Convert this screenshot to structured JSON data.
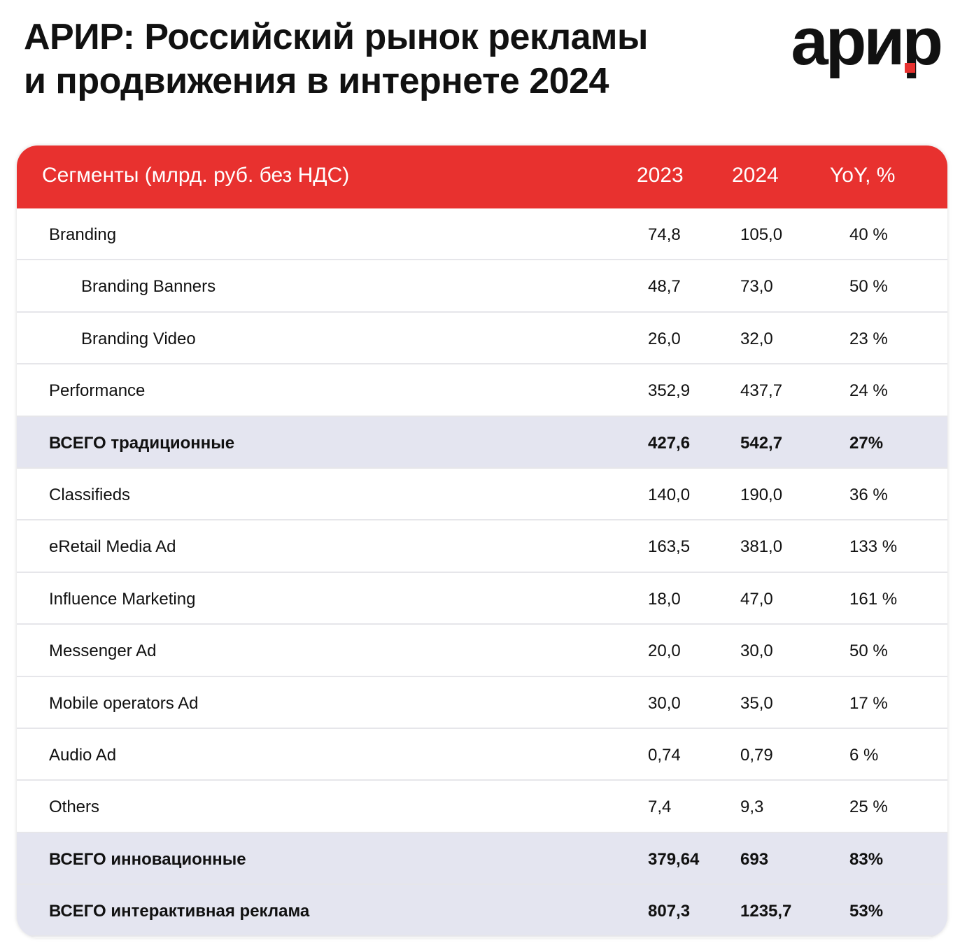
{
  "header": {
    "title_lines": [
      "АРИР: Российский рынок рекламы",
      "и продвижения в интернете 2024"
    ],
    "logo": "арир"
  },
  "table": {
    "columns": [
      "Сегменты (млрд. руб. без НДС)",
      "2023",
      "2024",
      "YoY, %"
    ],
    "rows": [
      [
        "Branding",
        "74,8",
        "105,0",
        "40 %"
      ],
      [
        "Branding Banners",
        "48,7",
        "73,0",
        "50 %"
      ],
      [
        "Branding Video",
        "26,0",
        "32,0",
        "23 %"
      ],
      [
        "Performance",
        "352,9",
        "437,7",
        "24 %"
      ],
      [
        "ВСЕГО традиционные",
        "427,6",
        "542,7",
        "27%"
      ],
      [
        "Classifieds",
        "140,0",
        "190,0",
        "36 %"
      ],
      [
        "eRetail Media Ad",
        "163,5",
        "381,0",
        "133 %"
      ],
      [
        "Influence Marketing",
        "18,0",
        "47,0",
        "161 %"
      ],
      [
        "Messenger Ad",
        "20,0",
        "30,0",
        "50 %"
      ],
      [
        "Mobile operators Ad",
        "30,0",
        "35,0",
        "17 %"
      ],
      [
        "Audio Ad",
        "0,74",
        "0,79",
        "6 %"
      ],
      [
        "Others",
        "7,4",
        "9,3",
        "25 %"
      ],
      [
        "ВСЕГО инновационные",
        "379,64",
        "693",
        "83%"
      ],
      [
        "ВСЕГО интерактивная реклама",
        "807,3",
        "1235,7",
        "53%"
      ]
    ]
  }
}
